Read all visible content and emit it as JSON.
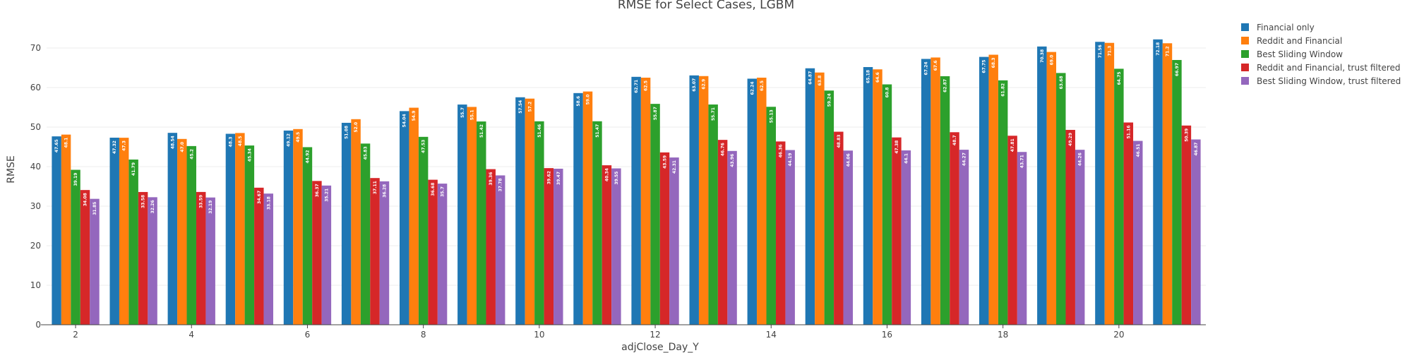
{
  "chart_data": {
    "type": "bar",
    "title": "RMSE for Select Cases, LGBM",
    "xlabel": "adjClose_Day_Y",
    "ylabel": "RMSE",
    "ylim": [
      0,
      75
    ],
    "xlim": [
      1.5,
      21.5
    ],
    "x_ticks": [
      "2",
      "4",
      "6",
      "8",
      "10",
      "12",
      "14",
      "16",
      "18",
      "20"
    ],
    "y_ticks": [
      "0",
      "10",
      "20",
      "30",
      "40",
      "50",
      "60",
      "70"
    ],
    "grid": true,
    "legend_position": "top-right",
    "categories": [
      2,
      3,
      4,
      5,
      6,
      7,
      8,
      9,
      10,
      11,
      12,
      13,
      14,
      15,
      16,
      17,
      18,
      19,
      20,
      21
    ],
    "series": [
      {
        "name": "Financial only",
        "color": "#1f77b4",
        "values": [
          47.65,
          47.32,
          48.54,
          48.3,
          49.12,
          51.08,
          54.04,
          55.7,
          57.54,
          58.6,
          62.71,
          63.07,
          62.24,
          64.87,
          65.18,
          67.24,
          67.75,
          70.38,
          71.56,
          72.18
        ],
        "labels": [
          "47.65",
          "47.32",
          "48.54",
          "48.3",
          "49.12",
          "51.08",
          "54.04",
          "55.7",
          "57.54",
          "58.6",
          "62.71",
          "63.07",
          "62.24",
          "64.87",
          "65.18",
          "67.24",
          "67.75",
          "70.38",
          "71.56",
          "72.18"
        ]
      },
      {
        "name": "Reddit and Financial",
        "color": "#ff7f0e",
        "values": [
          48.1,
          47.3,
          47.0,
          48.5,
          49.5,
          52.0,
          54.9,
          55.1,
          57.2,
          59.0,
          62.5,
          62.9,
          62.5,
          63.8,
          64.6,
          67.6,
          68.3,
          69.0,
          71.3,
          71.2
        ],
        "labels": [
          "48.1",
          "47.3",
          "47.0",
          "48.5",
          "49.5",
          "52.0",
          "54.9",
          "55.1",
          "57.2",
          "59.0",
          "62.5",
          "62.9",
          "62.5",
          "63.8",
          "64.6",
          "67.6",
          "68.3",
          "69.0",
          "71.3",
          "71.2"
        ]
      },
      {
        "name": "Best Sliding Window",
        "color": "#2ca02c",
        "values": [
          39.19,
          41.79,
          45.2,
          45.34,
          44.92,
          45.83,
          47.53,
          51.42,
          51.46,
          51.47,
          55.87,
          55.71,
          55.13,
          59.24,
          60.8,
          62.87,
          61.82,
          63.68,
          64.75,
          66.97
        ],
        "labels": [
          "39.19",
          "41.79",
          "45.2",
          "45.34",
          "44.92",
          "45.83",
          "47.53",
          "51.42",
          "51.46",
          "51.47",
          "55.87",
          "55.71",
          "55.13",
          "59.24",
          "60.8",
          "62.87",
          "61.82",
          "63.68",
          "64.75",
          "66.97"
        ]
      },
      {
        "name": "Reddit and Financial, trust filtered",
        "color": "#d62728",
        "values": [
          34.08,
          33.58,
          33.59,
          34.67,
          36.37,
          37.11,
          36.68,
          39.36,
          39.62,
          40.34,
          43.59,
          46.76,
          46.36,
          48.83,
          47.38,
          48.7,
          47.81,
          49.29,
          51.16,
          50.39
        ],
        "labels": [
          "34.08",
          "33.58",
          "33.59",
          "34.67",
          "36.37",
          "37.11",
          "36.68",
          "39.36",
          "39.62",
          "40.34",
          "43.59",
          "46.76",
          "46.36",
          "48.83",
          "47.38",
          "48.7",
          "47.81",
          "49.29",
          "51.16",
          "50.39"
        ]
      },
      {
        "name": "Best Sliding Window, trust filtered",
        "color": "#9467bd",
        "values": [
          31.85,
          32.26,
          32.19,
          33.18,
          35.21,
          36.28,
          35.7,
          37.78,
          39.47,
          39.55,
          42.31,
          43.96,
          44.19,
          44.06,
          44.1,
          44.27,
          43.71,
          44.26,
          46.51,
          46.87
        ],
        "labels": [
          "31.85",
          "32.26",
          "32.19",
          "33.18",
          "35.21",
          "36.28",
          "35.7",
          "37.78",
          "39.47",
          "39.55",
          "42.31",
          "43.96",
          "44.19",
          "44.06",
          "44.1",
          "44.27",
          "43.71",
          "44.26",
          "46.51",
          "46.87"
        ]
      }
    ]
  }
}
